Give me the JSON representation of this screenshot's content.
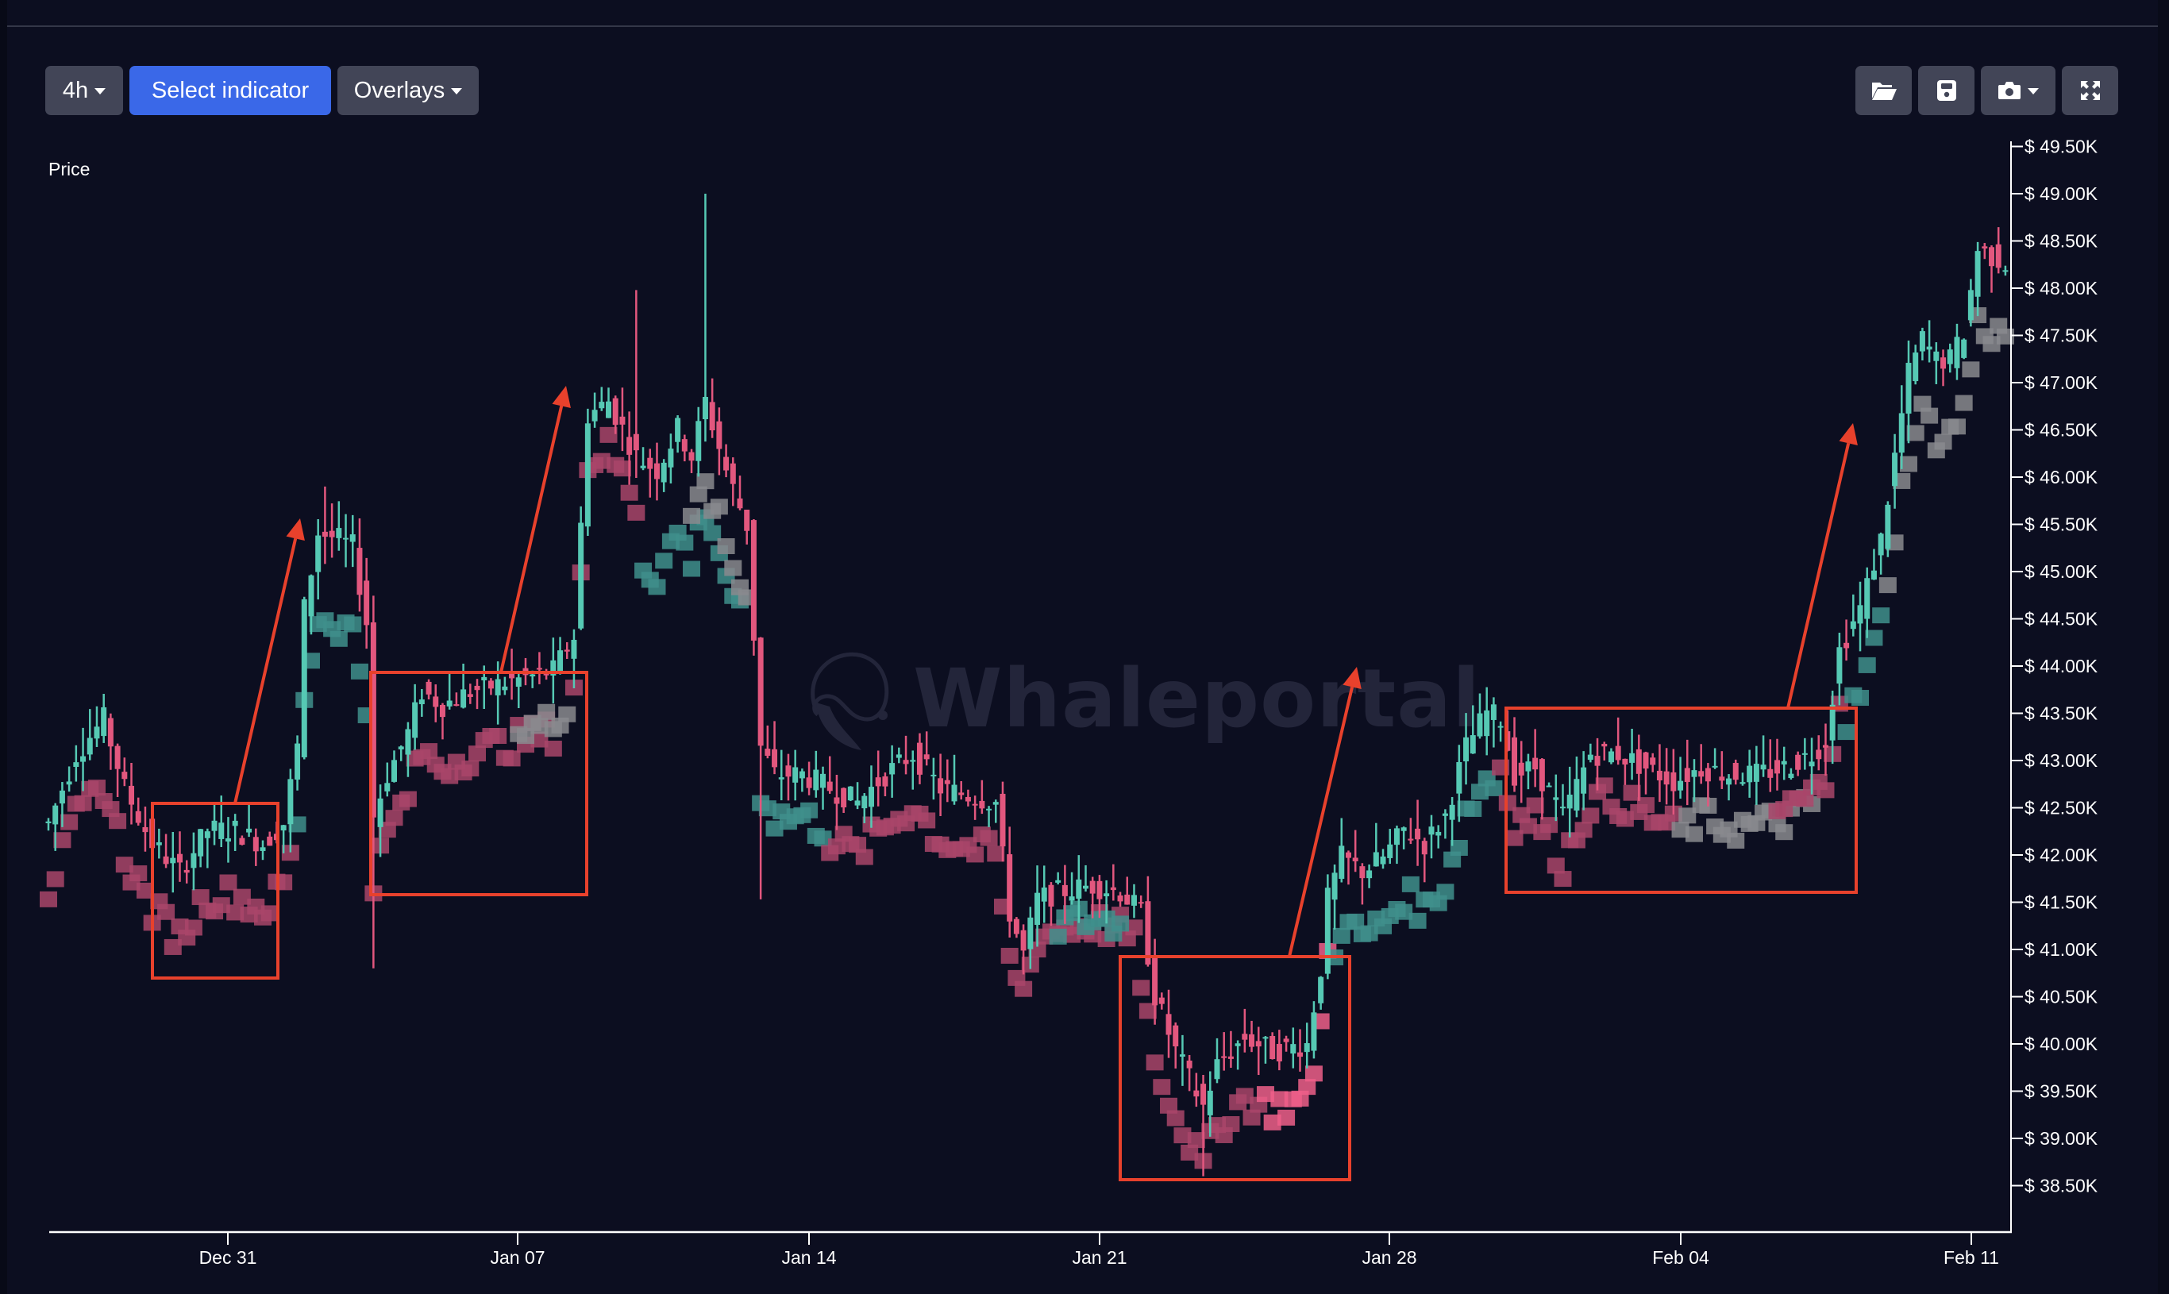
{
  "toolbar": {
    "interval_label": "4h",
    "indicator_label": "Select indicator",
    "overlays_label": "Overlays",
    "icons": [
      "folder-open-icon",
      "save-icon",
      "camera-icon",
      "expand-icon"
    ]
  },
  "watermark": "Whaleportal",
  "colors": {
    "background": "#0c0e20",
    "up": "#56c9b4",
    "down": "#e2577e",
    "marker_up": "#3f8f8c",
    "marker_down": "#a9456a",
    "marker_down_dark": "#5a2c45",
    "marker_neutral": "#8a8a8e",
    "marker_bright": "#ee5f8a",
    "annotation": "#e8412c",
    "axis": "#ffffff",
    "button": "#424557",
    "button_primary": "#3a68e8"
  },
  "chart_data": {
    "type": "candlestick",
    "title": "",
    "ylabel": "Price",
    "xlabel": "",
    "interval": "4h",
    "ylim": [
      38000,
      49750
    ],
    "y_ticks": [
      "$ 49.50K",
      "$ 49.00K",
      "$ 48.50K",
      "$ 48.00K",
      "$ 47.50K",
      "$ 47.00K",
      "$ 46.50K",
      "$ 46.00K",
      "$ 45.50K",
      "$ 45.00K",
      "$ 44.50K",
      "$ 44.00K",
      "$ 43.50K",
      "$ 43.00K",
      "$ 42.50K",
      "$ 42.00K",
      "$ 41.50K",
      "$ 41.00K",
      "$ 40.50K",
      "$ 40.00K",
      "$ 39.50K",
      "$ 39.00K",
      "$ 38.50K"
    ],
    "y_tick_values": [
      49500,
      49000,
      48500,
      48000,
      47500,
      47000,
      46500,
      46000,
      45500,
      45000,
      44500,
      44000,
      43500,
      43000,
      42500,
      42000,
      41500,
      41000,
      40500,
      40000,
      39500,
      39000,
      38500
    ],
    "x_ticks": [
      {
        "label": "Dec 31",
        "candle_index": 45.2
      },
      {
        "label": "Jan 07",
        "candle_index": 87.2
      },
      {
        "label": "Jan 14",
        "candle_index": 129.4
      },
      {
        "label": "Jan 21",
        "candle_index": 171.2
      },
      {
        "label": "Jan 28",
        "candle_index": 213.2
      },
      {
        "label": "Feb 04",
        "candle_index": 255.4
      },
      {
        "label": "Feb 11",
        "candle_index": 297.4
      }
    ],
    "candle_count": 284,
    "close_waypoints": [
      [
        0,
        42339
      ],
      [
        4,
        43071
      ],
      [
        8,
        43437
      ],
      [
        11,
        42705
      ],
      [
        15,
        42119
      ],
      [
        19,
        41827
      ],
      [
        23,
        42266
      ],
      [
        27,
        42266
      ],
      [
        31,
        42119
      ],
      [
        34,
        42339
      ],
      [
        36,
        43144
      ],
      [
        37,
        44608
      ],
      [
        39,
        45414
      ],
      [
        42,
        45340
      ],
      [
        44,
        45267
      ],
      [
        46,
        44462
      ],
      [
        47,
        42412
      ],
      [
        49,
        42852
      ],
      [
        52,
        43291
      ],
      [
        54,
        43730
      ],
      [
        57,
        43584
      ],
      [
        61,
        43730
      ],
      [
        65,
        43803
      ],
      [
        69,
        43876
      ],
      [
        73,
        43950
      ],
      [
        76,
        44316
      ],
      [
        78,
        46658
      ],
      [
        81,
        46804
      ],
      [
        85,
        46219
      ],
      [
        88,
        46072
      ],
      [
        91,
        46511
      ],
      [
        93,
        46219
      ],
      [
        95,
        46804
      ],
      [
        98,
        46072
      ],
      [
        101,
        45487
      ],
      [
        102,
        44316
      ],
      [
        103,
        43144
      ],
      [
        105,
        42852
      ],
      [
        109,
        42852
      ],
      [
        113,
        42705
      ],
      [
        117,
        42559
      ],
      [
        121,
        42852
      ],
      [
        125,
        43071
      ],
      [
        129,
        42705
      ],
      [
        133,
        42632
      ],
      [
        137,
        42559
      ],
      [
        139,
        41388
      ],
      [
        141,
        40948
      ],
      [
        143,
        41534
      ],
      [
        146,
        41607
      ],
      [
        151,
        41680
      ],
      [
        155,
        41607
      ],
      [
        158,
        41388
      ],
      [
        160,
        40509
      ],
      [
        163,
        39924
      ],
      [
        167,
        39338
      ],
      [
        169,
        39777
      ],
      [
        173,
        40070
      ],
      [
        177,
        39924
      ],
      [
        182,
        39997
      ],
      [
        184,
        40802
      ],
      [
        185,
        41534
      ],
      [
        187,
        41973
      ],
      [
        190,
        41827
      ],
      [
        193,
        41973
      ],
      [
        196,
        42266
      ],
      [
        199,
        42119
      ],
      [
        202,
        42412
      ],
      [
        205,
        43144
      ],
      [
        208,
        43510
      ],
      [
        210,
        43437
      ],
      [
        212,
        42852
      ],
      [
        215,
        42925
      ],
      [
        219,
        42412
      ],
      [
        223,
        43071
      ],
      [
        227,
        43071
      ],
      [
        231,
        42925
      ],
      [
        235,
        42778
      ],
      [
        239,
        42925
      ],
      [
        243,
        42852
      ],
      [
        247,
        42852
      ],
      [
        251,
        42925
      ],
      [
        255,
        43071
      ],
      [
        257,
        43217
      ],
      [
        259,
        44169
      ],
      [
        262,
        44608
      ],
      [
        265,
        45340
      ],
      [
        267,
        46219
      ],
      [
        269,
        47097
      ],
      [
        271,
        47463
      ],
      [
        273,
        47243
      ],
      [
        275,
        47243
      ],
      [
        277,
        47536
      ],
      [
        279,
        48415
      ],
      [
        281,
        48342
      ],
      [
        283,
        48268
      ]
    ],
    "notable_wicks": [
      {
        "candle_index": 40,
        "high": 45900
      },
      {
        "candle_index": 47,
        "low": 40800
      },
      {
        "candle_index": 85,
        "high": 47980
      },
      {
        "candle_index": 95,
        "high": 49000
      },
      {
        "candle_index": 103,
        "low": 41530
      },
      {
        "candle_index": 167,
        "low": 38600
      }
    ],
    "marker_segments": [
      {
        "from": 0,
        "to": 36,
        "color": "marker_down",
        "offset": -700
      },
      {
        "from": 36,
        "to": 47,
        "color": "marker_up",
        "offset": -900
      },
      {
        "from": 47,
        "to": 74,
        "color": "marker_down",
        "offset": -650
      },
      {
        "from": 68,
        "to": 76,
        "color": "marker_neutral",
        "offset": -550
      },
      {
        "from": 76,
        "to": 86,
        "color": "marker_down",
        "offset": -500
      },
      {
        "from": 86,
        "to": 101,
        "color": "marker_up",
        "offset": -1100
      },
      {
        "from": 93,
        "to": 102,
        "color": "marker_neutral",
        "offset": -800
      },
      {
        "from": 103,
        "to": 113,
        "color": "marker_up",
        "offset": -450
      },
      {
        "from": 113,
        "to": 140,
        "color": "marker_down",
        "offset": -550
      },
      {
        "from": 140,
        "to": 158,
        "color": "marker_down",
        "offset": -400
      },
      {
        "from": 146,
        "to": 156,
        "color": "marker_up",
        "offset": -350
      },
      {
        "from": 158,
        "to": 176,
        "color": "marker_down",
        "offset": -650
      },
      {
        "from": 176,
        "to": 186,
        "color": "marker_bright",
        "offset": -600
      },
      {
        "from": 186,
        "to": 210,
        "color": "marker_up",
        "offset": -700
      },
      {
        "from": 210,
        "to": 236,
        "color": "marker_down",
        "offset": -500
      },
      {
        "from": 236,
        "to": 256,
        "color": "marker_neutral",
        "offset": -550
      },
      {
        "from": 250,
        "to": 260,
        "color": "marker_down",
        "offset": -450
      },
      {
        "from": 260,
        "to": 266,
        "color": "marker_up",
        "offset": -900
      },
      {
        "from": 266,
        "to": 284,
        "color": "marker_neutral",
        "offset": -800
      }
    ],
    "annotations": [
      {
        "type": "rect",
        "x1": 192,
        "y1": 1012,
        "x2": 350,
        "y2": 1232
      },
      {
        "type": "arrow",
        "x1": 296,
        "y1": 1012,
        "x2": 378,
        "y2": 653
      },
      {
        "type": "rect",
        "x1": 467,
        "y1": 847,
        "x2": 739,
        "y2": 1127
      },
      {
        "type": "arrow",
        "x1": 631,
        "y1": 847,
        "x2": 713,
        "y2": 486
      },
      {
        "type": "rect",
        "x1": 1411,
        "y1": 1205,
        "x2": 1700,
        "y2": 1486
      },
      {
        "type": "arrow",
        "x1": 1624,
        "y1": 1205,
        "x2": 1709,
        "y2": 840
      },
      {
        "type": "rect",
        "x1": 1897,
        "y1": 892,
        "x2": 2338,
        "y2": 1124
      },
      {
        "type": "arrow",
        "x1": 2252,
        "y1": 892,
        "x2": 2334,
        "y2": 533
      }
    ]
  }
}
